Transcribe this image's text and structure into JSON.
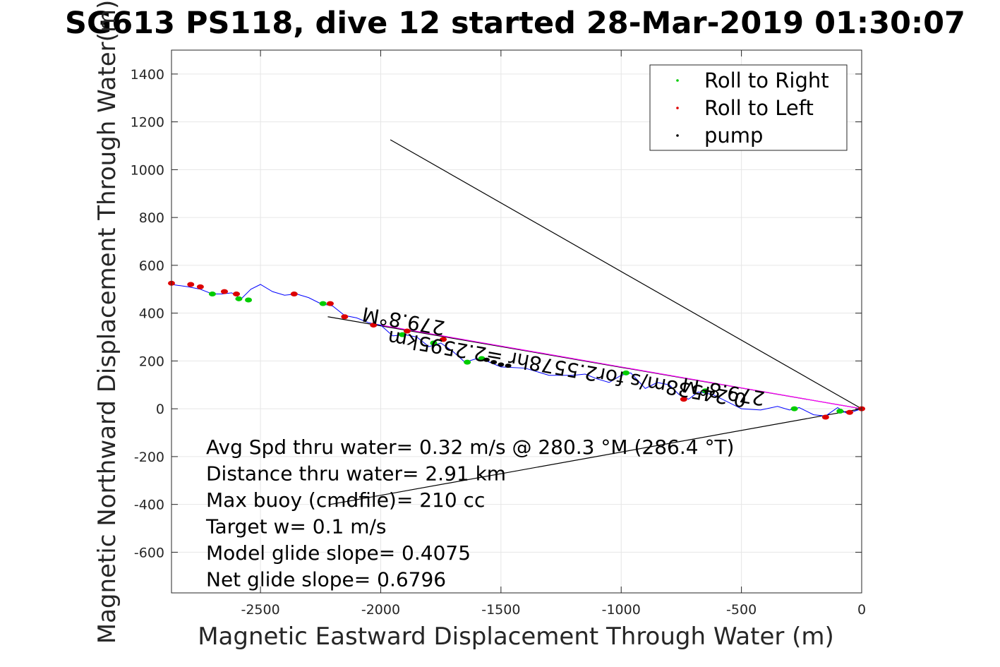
{
  "chart_data": {
    "type": "line",
    "title": "SG613 PS118, dive 12 started 28-Mar-2019 01:30:07",
    "xlabel": "Magnetic Eastward Displacement Through Water (m)",
    "ylabel": "Magnetic Northward Displacement Through Water(m)",
    "xlim": [
      -2870,
      0
    ],
    "ylim": [
      -770,
      1500
    ],
    "grid": true,
    "x_ticks": [
      -2500,
      -2000,
      -1500,
      -1000,
      -500,
      0
    ],
    "y_ticks": [
      -600,
      -400,
      -200,
      0,
      200,
      400,
      600,
      800,
      1000,
      1200,
      1400
    ],
    "legend": {
      "placement": "top-right",
      "entries": [
        {
          "label": "Roll to Right",
          "color": "#00cc00"
        },
        {
          "label": "Roll to Left",
          "color": "#dd0000"
        },
        {
          "label": "pump",
          "color": "#000000"
        }
      ]
    },
    "track": {
      "name": "glider track",
      "color": "#0000ff",
      "x": [
        0,
        -60,
        -100,
        -150,
        -200,
        -260,
        -300,
        -350,
        -420,
        -500,
        -560,
        -620,
        -680,
        -720,
        -760,
        -800,
        -850,
        -900,
        -960,
        -1000,
        -1050,
        -1100,
        -1150,
        -1200,
        -1300,
        -1400,
        -1500,
        -1560,
        -1600,
        -1650,
        -1700,
        -1750,
        -1800,
        -1850,
        -1900,
        -1950,
        -2000,
        -2050,
        -2100,
        -2150,
        -2200,
        -2250,
        -2300,
        -2350,
        -2400,
        -2450,
        -2500,
        -2540,
        -2580,
        -2620,
        -2660,
        -2700,
        -2750,
        -2800,
        -2870
      ],
      "y": [
        0,
        -20,
        5,
        -30,
        -25,
        5,
        -5,
        10,
        -5,
        0,
        30,
        60,
        70,
        40,
        60,
        100,
        110,
        85,
        150,
        140,
        110,
        125,
        145,
        140,
        140,
        170,
        175,
        200,
        210,
        195,
        240,
        275,
        260,
        300,
        310,
        305,
        350,
        360,
        380,
        390,
        430,
        440,
        465,
        480,
        475,
        490,
        520,
        500,
        460,
        485,
        480,
        480,
        500,
        510,
        520
      ]
    },
    "roll_right": {
      "color": "#00cc00",
      "x": [
        -90,
        -280,
        -650,
        -980,
        -1580,
        -1640,
        -1780,
        -1910,
        -2240,
        -2550,
        -2590,
        -2700
      ],
      "y": [
        -10,
        0,
        75,
        150,
        210,
        195,
        275,
        310,
        440,
        455,
        460,
        480
      ]
    },
    "roll_left": {
      "color": "#dd0000",
      "x": [
        0,
        -50,
        -150,
        -740,
        -1740,
        -1890,
        -2030,
        -2150,
        -2210,
        -2360,
        -2600,
        -2650,
        -2750,
        -2790,
        -2870
      ],
      "y": [
        0,
        -15,
        -35,
        40,
        290,
        325,
        350,
        385,
        440,
        480,
        480,
        490,
        510,
        520,
        525
      ]
    },
    "pump": {
      "color": "#000000",
      "x": [
        -1470,
        -1500,
        -1530,
        -1560
      ],
      "y": [
        180,
        185,
        195,
        205
      ]
    },
    "heading_lines": [
      {
        "name": "line-to-upper",
        "color": "#000000",
        "x": [
          0,
          -1960
        ],
        "y": [
          0,
          1125
        ]
      },
      {
        "name": "line-to-lower",
        "color": "#000000",
        "x": [
          0,
          -2210
        ],
        "y": [
          0,
          -400
        ]
      },
      {
        "name": "line-to-heading-279",
        "color": "#000000",
        "x": [
          0,
          -2220
        ],
        "y": [
          0,
          385
        ]
      },
      {
        "name": "line-net-displacement",
        "color": "#ff00ff",
        "x": [
          0,
          -2000
        ],
        "y": [
          0,
          350
        ]
      }
    ],
    "annotations": [
      {
        "text": "279.8°M",
        "x": -1900,
        "y": 395,
        "angle": 190
      },
      {
        "text": "0.24538m/s for2.5578hr =2.2595km",
        "x": -1220,
        "y": 195,
        "angle": 190
      },
      {
        "text": "279.8°M",
        "x": -570,
        "y": 100,
        "angle": 190
      }
    ],
    "stats": [
      "Avg Spd thru water=  0.32 m/s @ 280.3 °M (286.4 °T)",
      "Distance thru water=  2.91 km",
      "Max buoy (cmdfile)= 210 cc",
      "Target w= 0.1 m/s",
      "Model glide slope= 0.4075",
      "Net glide slope= 0.6796"
    ]
  }
}
